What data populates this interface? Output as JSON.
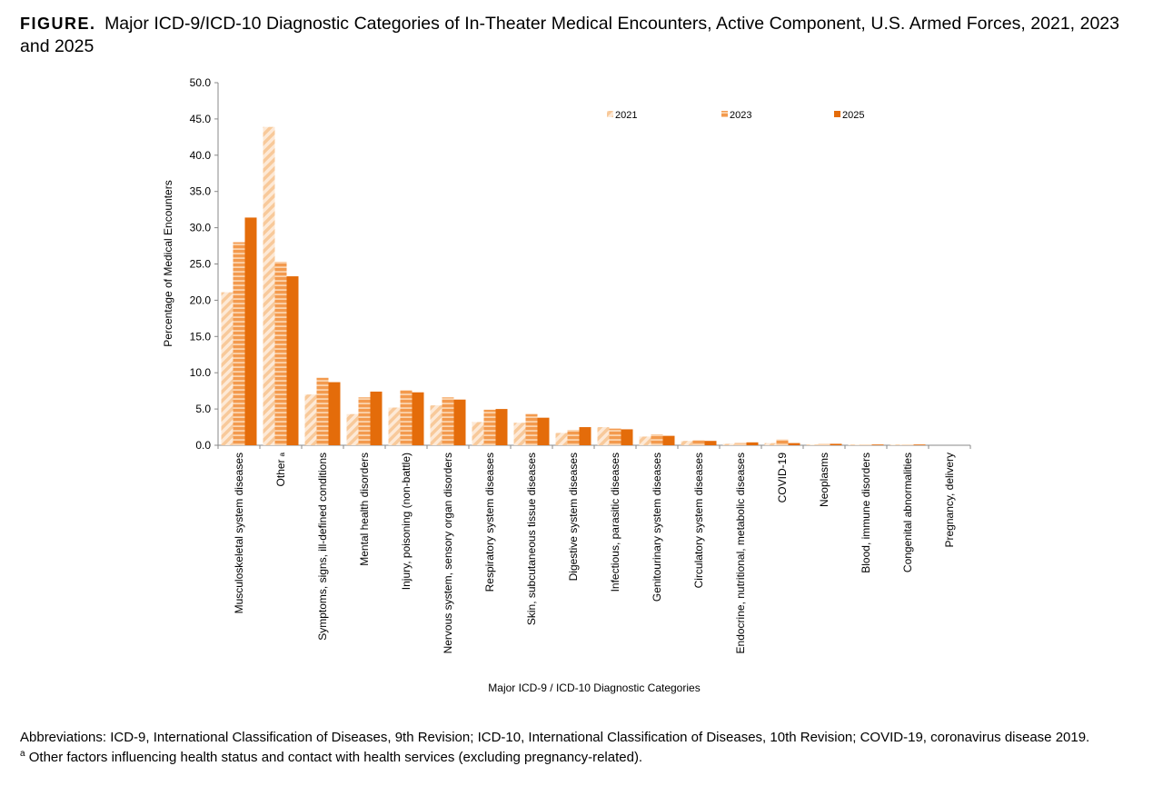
{
  "figure": {
    "label": "FIGURE.",
    "title": "Major ICD-9/ICD-10 Diagnostic Categories of In-Theater Medical Encounters, Active Component, U.S. Armed Forces, 2021, 2023 and 2025"
  },
  "chart_data": {
    "type": "bar",
    "xlabel": "Major ICD-9 / ICD-10 Diagnostic Categories",
    "ylabel": "Percentage of Medical Encounters",
    "ylim": [
      0,
      50
    ],
    "yticks": [
      "0.0",
      "5.0",
      "10.0",
      "15.0",
      "20.0",
      "25.0",
      "30.0",
      "35.0",
      "40.0",
      "45.0",
      "50.0"
    ],
    "grid": false,
    "legend_position": "top-right",
    "categories": [
      "Musculoskeletal system diseases",
      "Other",
      "Symptoms, signs, ill-defined conditions",
      "Mental health disorders",
      "Injury, poisoning (non-battle)",
      "Nervous system, sensory organ disorders",
      "Respiratory system diseases",
      "Skin, subcutaneous tissue diseases",
      "Digestive system diseases",
      "Infectious, parasitic diseases",
      "Genitourinary system diseases",
      "Circulatory system diseases",
      "Endocrine, nutritional, metabolic diseases",
      "COVID-19",
      "Neoplasms",
      "Blood, immune disorders",
      "Congenital abnormalities",
      "Pregnancy, delivery"
    ],
    "category_superscripts": [
      "",
      "a",
      "",
      "",
      "",
      "",
      "",
      "",
      "",
      "",
      "",
      "",
      "",
      "",
      "",
      "",
      "",
      ""
    ],
    "series": [
      {
        "name": "2021",
        "color": "#fbd5b0",
        "pattern": "diagonal-stripes",
        "values": [
          21.1,
          43.9,
          7.0,
          4.3,
          5.2,
          5.5,
          3.2,
          3.1,
          1.7,
          2.5,
          1.2,
          0.6,
          0.2,
          0.3,
          0.1,
          0.1,
          0.1,
          0.0
        ]
      },
      {
        "name": "2023",
        "color": "#f39a4e",
        "pattern": "horizontal-stripes",
        "values": [
          28.0,
          25.3,
          9.3,
          6.6,
          7.6,
          6.6,
          4.9,
          4.3,
          2.1,
          2.3,
          1.5,
          0.7,
          0.3,
          0.8,
          0.2,
          0.1,
          0.1,
          0.0
        ]
      },
      {
        "name": "2025",
        "color": "#e46c0a",
        "pattern": "solid",
        "values": [
          31.4,
          23.3,
          8.7,
          7.4,
          7.3,
          6.3,
          5.0,
          3.8,
          2.5,
          2.2,
          1.3,
          0.6,
          0.4,
          0.3,
          0.2,
          0.1,
          0.1,
          0.0
        ]
      }
    ]
  },
  "footnotes": {
    "abbreviations": "Abbreviations: ICD-9, International Classification of Diseases, 9th Revision; ICD-10,  International Classification of Diseases, 10th Revision; COVID-19, coronavirus disease 2019.",
    "note_marker": "a",
    "note": "Other factors influencing health status and contact with health services (excluding pregnancy-related)."
  }
}
